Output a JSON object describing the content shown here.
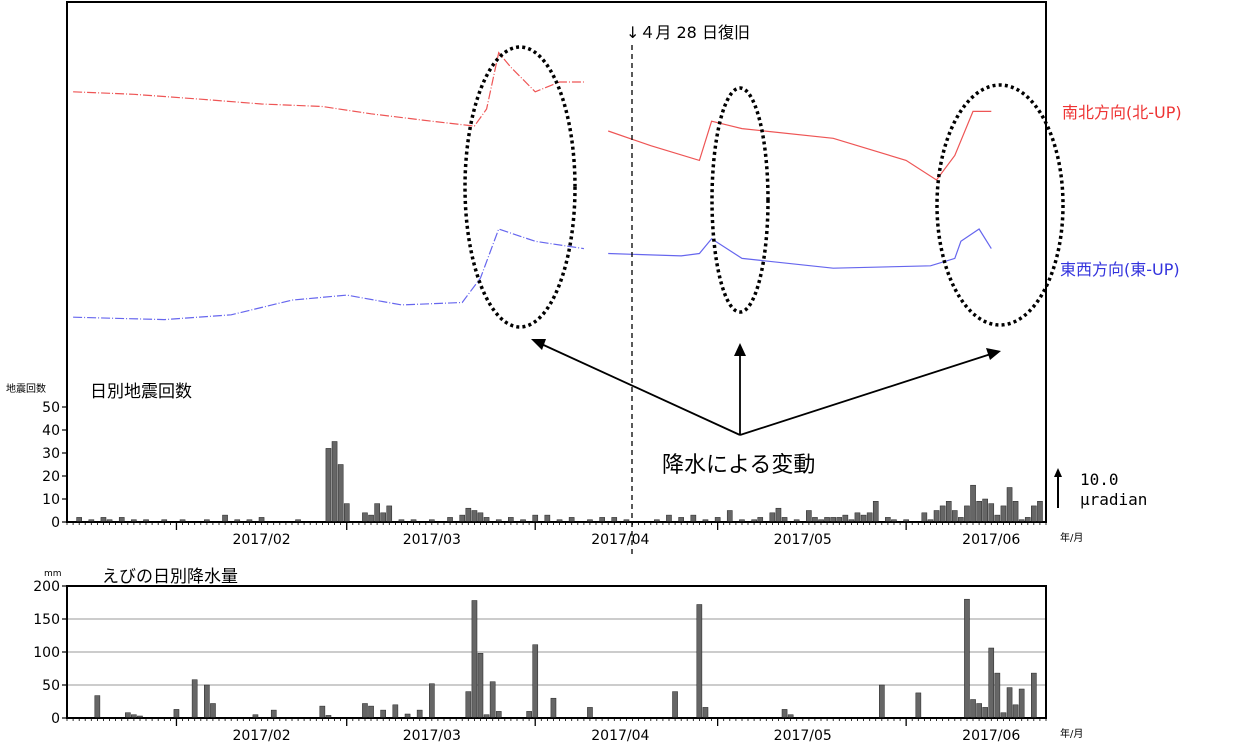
{
  "chart_data": [
    {
      "type": "line",
      "annotation_recovery": "↓４月 28 日復旧",
      "annotation_rain": "降水による変動",
      "scale_value": "10.0",
      "scale_unit": "μradian",
      "series": [
        {
          "name": "南北方向(北-UP)",
          "color": "#ee5555",
          "points": [
            {
              "x": "2017-01-15",
              "y": 3.6
            },
            {
              "x": "2017-01-25",
              "y": 3.5
            },
            {
              "x": "2017-02-05",
              "y": 3.3
            },
            {
              "x": "2017-02-15",
              "y": 3.1
            },
            {
              "x": "2017-02-25",
              "y": 3.0
            },
            {
              "x": "2017-03-05",
              "y": 2.7
            },
            {
              "x": "2017-03-15",
              "y": 2.4
            },
            {
              "x": "2017-03-22",
              "y": 2.2
            },
            {
              "x": "2017-03-24",
              "y": 2.9
            },
            {
              "x": "2017-03-26",
              "y": 5.2
            },
            {
              "x": "2017-03-28",
              "y": 4.6
            },
            {
              "x": "2017-04-01",
              "y": 3.6
            },
            {
              "x": "2017-04-05",
              "y": 4.0
            },
            {
              "x": "2017-04-09",
              "y": 4.0
            },
            {
              "x": "2017-04-13",
              "y": 2.0
            },
            {
              "x": "2017-04-20",
              "y": 1.4
            },
            {
              "x": "2017-04-28",
              "y": 0.8
            },
            {
              "x": "2017-04-30",
              "y": 2.4
            },
            {
              "x": "2017-05-05",
              "y": 2.1
            },
            {
              "x": "2017-05-20",
              "y": 1.7
            },
            {
              "x": "2017-06-01",
              "y": 0.8
            },
            {
              "x": "2017-06-06",
              "y": 0.0
            },
            {
              "x": "2017-06-09",
              "y": 1.0
            },
            {
              "x": "2017-06-12",
              "y": 2.8
            },
            {
              "x": "2017-06-15",
              "y": 2.8
            }
          ]
        },
        {
          "name": "東西方向(東-UP)",
          "color": "#6666ee",
          "points": [
            {
              "x": "2017-01-15",
              "y": -5.6
            },
            {
              "x": "2017-01-30",
              "y": -5.7
            },
            {
              "x": "2017-02-10",
              "y": -5.5
            },
            {
              "x": "2017-02-20",
              "y": -4.9
            },
            {
              "x": "2017-03-01",
              "y": -4.7
            },
            {
              "x": "2017-03-10",
              "y": -5.1
            },
            {
              "x": "2017-03-20",
              "y": -5.0
            },
            {
              "x": "2017-03-23",
              "y": -4.0
            },
            {
              "x": "2017-03-26",
              "y": -2.0
            },
            {
              "x": "2017-04-01",
              "y": -2.5
            },
            {
              "x": "2017-04-09",
              "y": -2.8
            },
            {
              "x": "2017-04-13",
              "y": -3.0
            },
            {
              "x": "2017-04-25",
              "y": -3.1
            },
            {
              "x": "2017-04-28",
              "y": -3.0
            },
            {
              "x": "2017-04-30",
              "y": -2.4
            },
            {
              "x": "2017-05-05",
              "y": -3.2
            },
            {
              "x": "2017-05-20",
              "y": -3.6
            },
            {
              "x": "2017-06-05",
              "y": -3.5
            },
            {
              "x": "2017-06-09",
              "y": -3.2
            },
            {
              "x": "2017-06-10",
              "y": -2.5
            },
            {
              "x": "2017-06-13",
              "y": -2.0
            },
            {
              "x": "2017-06-15",
              "y": -2.8
            }
          ]
        }
      ]
    },
    {
      "type": "bar",
      "title": "日別地震回数",
      "ylabel": "地震回数",
      "xunit": "年/月",
      "ylim": [
        0,
        50
      ],
      "yticks": [
        0,
        10,
        20,
        30,
        40,
        50
      ],
      "xticks": [
        "2017/02",
        "2017/03",
        "2017/04",
        "2017/05",
        "2017/06"
      ],
      "bars": [
        {
          "x": "2017-01-16",
          "y": 2
        },
        {
          "x": "2017-01-18",
          "y": 1
        },
        {
          "x": "2017-01-20",
          "y": 2
        },
        {
          "x": "2017-01-21",
          "y": 1
        },
        {
          "x": "2017-01-23",
          "y": 2
        },
        {
          "x": "2017-01-25",
          "y": 1
        },
        {
          "x": "2017-01-27",
          "y": 1
        },
        {
          "x": "2017-01-30",
          "y": 1
        },
        {
          "x": "2017-02-02",
          "y": 1
        },
        {
          "x": "2017-02-06",
          "y": 1
        },
        {
          "x": "2017-02-09",
          "y": 3
        },
        {
          "x": "2017-02-11",
          "y": 1
        },
        {
          "x": "2017-02-13",
          "y": 1
        },
        {
          "x": "2017-02-15",
          "y": 2
        },
        {
          "x": "2017-02-21",
          "y": 1
        },
        {
          "x": "2017-02-26",
          "y": 32
        },
        {
          "x": "2017-02-27",
          "y": 35
        },
        {
          "x": "2017-02-28",
          "y": 25
        },
        {
          "x": "2017-03-01",
          "y": 8
        },
        {
          "x": "2017-03-04",
          "y": 4
        },
        {
          "x": "2017-03-05",
          "y": 3
        },
        {
          "x": "2017-03-06",
          "y": 8
        },
        {
          "x": "2017-03-07",
          "y": 4
        },
        {
          "x": "2017-03-08",
          "y": 7
        },
        {
          "x": "2017-03-10",
          "y": 1
        },
        {
          "x": "2017-03-12",
          "y": 1
        },
        {
          "x": "2017-03-15",
          "y": 1
        },
        {
          "x": "2017-03-18",
          "y": 2
        },
        {
          "x": "2017-03-20",
          "y": 3
        },
        {
          "x": "2017-03-21",
          "y": 6
        },
        {
          "x": "2017-03-22",
          "y": 5
        },
        {
          "x": "2017-03-23",
          "y": 4
        },
        {
          "x": "2017-03-24",
          "y": 2
        },
        {
          "x": "2017-03-26",
          "y": 1
        },
        {
          "x": "2017-03-28",
          "y": 2
        },
        {
          "x": "2017-03-30",
          "y": 1
        },
        {
          "x": "2017-04-01",
          "y": 3
        },
        {
          "x": "2017-04-03",
          "y": 3
        },
        {
          "x": "2017-04-05",
          "y": 1
        },
        {
          "x": "2017-04-07",
          "y": 2
        },
        {
          "x": "2017-04-10",
          "y": 1
        },
        {
          "x": "2017-04-12",
          "y": 2
        },
        {
          "x": "2017-04-14",
          "y": 2
        },
        {
          "x": "2017-04-16",
          "y": 1
        },
        {
          "x": "2017-04-21",
          "y": 1
        },
        {
          "x": "2017-04-23",
          "y": 3
        },
        {
          "x": "2017-04-25",
          "y": 2
        },
        {
          "x": "2017-04-27",
          "y": 3
        },
        {
          "x": "2017-04-29",
          "y": 1
        },
        {
          "x": "2017-05-01",
          "y": 2
        },
        {
          "x": "2017-05-03",
          "y": 5
        },
        {
          "x": "2017-05-05",
          "y": 1
        },
        {
          "x": "2017-05-07",
          "y": 1
        },
        {
          "x": "2017-05-08",
          "y": 2
        },
        {
          "x": "2017-05-10",
          "y": 4
        },
        {
          "x": "2017-05-11",
          "y": 6
        },
        {
          "x": "2017-05-12",
          "y": 2
        },
        {
          "x": "2017-05-14",
          "y": 1
        },
        {
          "x": "2017-05-16",
          "y": 5
        },
        {
          "x": "2017-05-17",
          "y": 2
        },
        {
          "x": "2017-05-18",
          "y": 1
        },
        {
          "x": "2017-05-19",
          "y": 2
        },
        {
          "x": "2017-05-20",
          "y": 2
        },
        {
          "x": "2017-05-21",
          "y": 2
        },
        {
          "x": "2017-05-22",
          "y": 3
        },
        {
          "x": "2017-05-23",
          "y": 1
        },
        {
          "x": "2017-05-24",
          "y": 4
        },
        {
          "x": "2017-05-25",
          "y": 3
        },
        {
          "x": "2017-05-26",
          "y": 4
        },
        {
          "x": "2017-05-27",
          "y": 9
        },
        {
          "x": "2017-05-29",
          "y": 2
        },
        {
          "x": "2017-05-30",
          "y": 1
        },
        {
          "x": "2017-06-01",
          "y": 1
        },
        {
          "x": "2017-06-04",
          "y": 4
        },
        {
          "x": "2017-06-05",
          "y": 1
        },
        {
          "x": "2017-06-06",
          "y": 5
        },
        {
          "x": "2017-06-07",
          "y": 7
        },
        {
          "x": "2017-06-08",
          "y": 9
        },
        {
          "x": "2017-06-09",
          "y": 5
        },
        {
          "x": "2017-06-10",
          "y": 2
        },
        {
          "x": "2017-06-11",
          "y": 7
        },
        {
          "x": "2017-06-12",
          "y": 16
        },
        {
          "x": "2017-06-13",
          "y": 9
        },
        {
          "x": "2017-06-14",
          "y": 10
        },
        {
          "x": "2017-06-15",
          "y": 8
        },
        {
          "x": "2017-06-16",
          "y": 3
        },
        {
          "x": "2017-06-17",
          "y": 7
        },
        {
          "x": "2017-06-18",
          "y": 15
        },
        {
          "x": "2017-06-19",
          "y": 9
        },
        {
          "x": "2017-06-20",
          "y": 1
        },
        {
          "x": "2017-06-21",
          "y": 2
        },
        {
          "x": "2017-06-22",
          "y": 7
        },
        {
          "x": "2017-06-23",
          "y": 9
        }
      ]
    },
    {
      "type": "bar",
      "title": "えびの日別降水量",
      "ylabel": "mm",
      "xunit": "年/月",
      "ylim": [
        0,
        200
      ],
      "yticks": [
        0,
        50,
        100,
        150,
        200
      ],
      "grid": true,
      "xticks": [
        "2017/02",
        "2017/03",
        "2017/04",
        "2017/05",
        "2017/06"
      ],
      "bars": [
        {
          "x": "2017-01-19",
          "y": 34
        },
        {
          "x": "2017-01-24",
          "y": 8
        },
        {
          "x": "2017-01-25",
          "y": 5
        },
        {
          "x": "2017-01-26",
          "y": 3
        },
        {
          "x": "2017-02-01",
          "y": 13
        },
        {
          "x": "2017-02-04",
          "y": 58
        },
        {
          "x": "2017-02-06",
          "y": 50
        },
        {
          "x": "2017-02-07",
          "y": 22
        },
        {
          "x": "2017-02-14",
          "y": 5
        },
        {
          "x": "2017-02-17",
          "y": 12
        },
        {
          "x": "2017-02-25",
          "y": 18
        },
        {
          "x": "2017-02-26",
          "y": 4
        },
        {
          "x": "2017-03-04",
          "y": 22
        },
        {
          "x": "2017-03-05",
          "y": 18
        },
        {
          "x": "2017-03-07",
          "y": 12
        },
        {
          "x": "2017-03-09",
          "y": 20
        },
        {
          "x": "2017-03-11",
          "y": 6
        },
        {
          "x": "2017-03-13",
          "y": 12
        },
        {
          "x": "2017-03-15",
          "y": 52
        },
        {
          "x": "2017-03-21",
          "y": 40
        },
        {
          "x": "2017-03-22",
          "y": 178
        },
        {
          "x": "2017-03-23",
          "y": 98
        },
        {
          "x": "2017-03-24",
          "y": 5
        },
        {
          "x": "2017-03-25",
          "y": 55
        },
        {
          "x": "2017-03-26",
          "y": 10
        },
        {
          "x": "2017-03-31",
          "y": 10
        },
        {
          "x": "2017-04-01",
          "y": 111
        },
        {
          "x": "2017-04-04",
          "y": 30
        },
        {
          "x": "2017-04-10",
          "y": 16
        },
        {
          "x": "2017-04-24",
          "y": 40
        },
        {
          "x": "2017-04-28",
          "y": 172
        },
        {
          "x": "2017-04-29",
          "y": 16
        },
        {
          "x": "2017-05-12",
          "y": 13
        },
        {
          "x": "2017-05-13",
          "y": 5
        },
        {
          "x": "2017-05-28",
          "y": 50
        },
        {
          "x": "2017-06-03",
          "y": 38
        },
        {
          "x": "2017-06-11",
          "y": 180
        },
        {
          "x": "2017-06-12",
          "y": 28
        },
        {
          "x": "2017-06-13",
          "y": 22
        },
        {
          "x": "2017-06-14",
          "y": 16
        },
        {
          "x": "2017-06-15",
          "y": 106
        },
        {
          "x": "2017-06-16",
          "y": 68
        },
        {
          "x": "2017-06-17",
          "y": 8
        },
        {
          "x": "2017-06-18",
          "y": 46
        },
        {
          "x": "2017-06-19",
          "y": 20
        },
        {
          "x": "2017-06-20",
          "y": 44
        },
        {
          "x": "2017-06-22",
          "y": 68
        }
      ]
    }
  ]
}
